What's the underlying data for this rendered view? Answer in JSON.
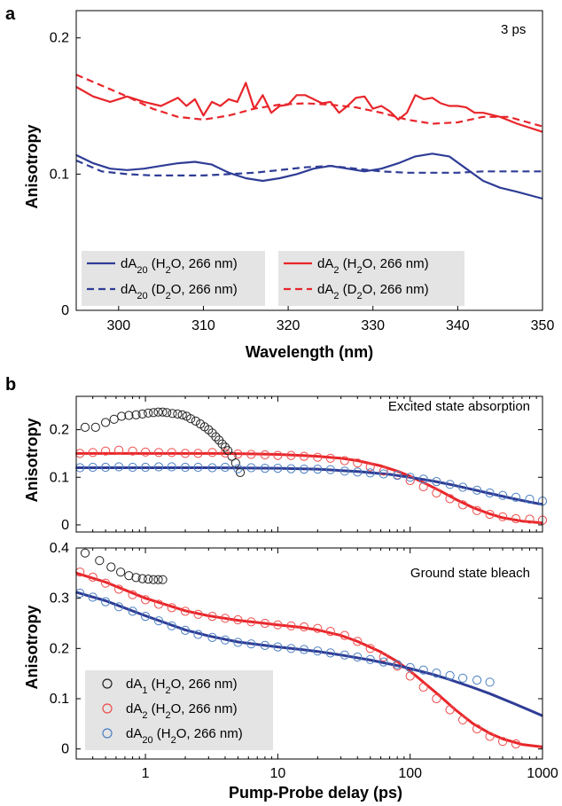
{
  "colors": {
    "blue": "#2f3d96",
    "red": "#e8262b",
    "black": "#222222",
    "legend_bg": "#e4e4e4",
    "marker_blue": "#4a7fc1",
    "marker_red": "#ee4a4a"
  },
  "panel_labels": {
    "a": "a",
    "b": "b"
  },
  "chart_data": [
    {
      "id": "a",
      "type": "line",
      "annotation": "3 ps",
      "xlabel": "Wavelength (nm)",
      "ylabel": "Anisotropy",
      "xlim": [
        295,
        350
      ],
      "ylim": [
        0,
        0.22
      ],
      "xticks": [
        "300",
        "310",
        "320",
        "330",
        "340",
        "350"
      ],
      "yticks": [
        "0",
        "0.1",
        "0.2"
      ],
      "legend": {
        "placement": "bottom-left"
      },
      "series": [
        {
          "name": "dA20 (H2O, 266 nm)",
          "legend_parts": [
            "dA",
            "20",
            " (H",
            "2",
            "O, 266 nm)"
          ],
          "color": "blue",
          "dash": false,
          "x": [
            295,
            297,
            299,
            301,
            303,
            305,
            307,
            309,
            311,
            313,
            315,
            317,
            319,
            321,
            323,
            325,
            327,
            329,
            331,
            333,
            335,
            337,
            339,
            341,
            343,
            345,
            347,
            350
          ],
          "y": [
            0.114,
            0.108,
            0.104,
            0.103,
            0.104,
            0.106,
            0.108,
            0.109,
            0.107,
            0.101,
            0.097,
            0.095,
            0.097,
            0.1,
            0.104,
            0.106,
            0.104,
            0.102,
            0.104,
            0.108,
            0.113,
            0.115,
            0.113,
            0.104,
            0.095,
            0.09,
            0.087,
            0.082
          ]
        },
        {
          "name": "dA20 (D2O, 266 nm)",
          "legend_parts": [
            "dA",
            "20",
            " (D",
            "2",
            "O, 266 nm)"
          ],
          "color": "blue",
          "dash": true,
          "x": [
            295,
            298,
            301,
            304,
            307,
            310,
            313,
            316,
            319,
            322,
            325,
            328,
            331,
            334,
            337,
            340,
            343,
            346,
            350
          ],
          "y": [
            0.11,
            0.102,
            0.1,
            0.099,
            0.099,
            0.099,
            0.1,
            0.101,
            0.103,
            0.105,
            0.106,
            0.104,
            0.102,
            0.101,
            0.101,
            0.101,
            0.102,
            0.102,
            0.102
          ]
        },
        {
          "name": "dA2 (H2O, 266 nm)",
          "legend_parts": [
            "dA",
            "2",
            " (H",
            "2",
            "O, 266 nm)"
          ],
          "color": "red",
          "dash": false,
          "x": [
            295,
            297,
            299,
            301,
            303,
            305,
            307,
            308,
            309,
            310,
            311,
            312,
            313,
            314,
            315,
            316,
            317,
            318,
            319,
            320,
            321,
            322,
            323,
            324,
            325,
            326,
            327,
            328,
            329,
            330,
            331,
            332,
            333,
            334,
            335,
            336,
            337,
            338,
            339,
            340,
            341,
            342,
            343,
            345,
            347,
            350
          ],
          "y": [
            0.164,
            0.157,
            0.153,
            0.157,
            0.153,
            0.15,
            0.156,
            0.15,
            0.155,
            0.143,
            0.153,
            0.15,
            0.155,
            0.153,
            0.167,
            0.148,
            0.158,
            0.145,
            0.15,
            0.151,
            0.158,
            0.158,
            0.155,
            0.152,
            0.153,
            0.145,
            0.15,
            0.156,
            0.157,
            0.148,
            0.15,
            0.146,
            0.14,
            0.145,
            0.158,
            0.155,
            0.156,
            0.152,
            0.15,
            0.15,
            0.149,
            0.145,
            0.145,
            0.142,
            0.137,
            0.131
          ]
        },
        {
          "name": "dA2 (D2O, 266 nm)",
          "legend_parts": [
            "dA",
            "2",
            " (D",
            "2",
            "O, 266 nm)"
          ],
          "color": "red",
          "dash": true,
          "x": [
            295,
            298,
            301,
            304,
            307,
            310,
            313,
            316,
            319,
            322,
            325,
            328,
            331,
            334,
            337,
            340,
            343,
            346,
            350
          ],
          "y": [
            0.173,
            0.165,
            0.157,
            0.148,
            0.142,
            0.14,
            0.143,
            0.148,
            0.151,
            0.152,
            0.151,
            0.149,
            0.145,
            0.14,
            0.137,
            0.138,
            0.142,
            0.142,
            0.135
          ]
        }
      ]
    },
    {
      "id": "b-top",
      "type": "scatter",
      "annotation": "Excited state absorption",
      "xlabel": "",
      "ylabel": "Anisotropy",
      "xscale": "log",
      "xlim": [
        0.3,
        1000
      ],
      "ylim": [
        -0.015,
        0.27
      ],
      "yticks": [
        "0",
        "0.1",
        "0.2"
      ],
      "series": [
        {
          "name": "dA1 (H2O, 266 nm)",
          "color": "black",
          "x": [
            0.35,
            0.42,
            0.5,
            0.58,
            0.66,
            0.75,
            0.85,
            0.95,
            1.05,
            1.15,
            1.25,
            1.35,
            1.45,
            1.6,
            1.75,
            1.9,
            2.05,
            2.2,
            2.4,
            2.6,
            2.8,
            3.0,
            3.2,
            3.4,
            3.6,
            3.8,
            4.0,
            4.2,
            4.5,
            4.8,
            5.2
          ],
          "y": [
            0.205,
            0.205,
            0.215,
            0.222,
            0.228,
            0.23,
            0.231,
            0.233,
            0.235,
            0.236,
            0.237,
            0.237,
            0.236,
            0.234,
            0.233,
            0.231,
            0.228,
            0.223,
            0.218,
            0.212,
            0.206,
            0.2,
            0.193,
            0.185,
            0.178,
            0.17,
            0.163,
            0.156,
            0.144,
            0.13,
            0.11
          ]
        },
        {
          "name": "dA2 (H2O, 266 nm)",
          "color": "red",
          "x": [
            0.32,
            0.4,
            0.5,
            0.63,
            0.8,
            1,
            1.26,
            1.58,
            2,
            2.5,
            3.2,
            4,
            5,
            6.3,
            8,
            10,
            12.6,
            15.8,
            20,
            25,
            32,
            40,
            50,
            63,
            80,
            100,
            126,
            158,
            200,
            250,
            320,
            400,
            500,
            630,
            800,
            1000
          ],
          "y": [
            0.15,
            0.152,
            0.155,
            0.157,
            0.155,
            0.153,
            0.152,
            0.152,
            0.15,
            0.15,
            0.152,
            0.151,
            0.149,
            0.148,
            0.147,
            0.146,
            0.146,
            0.144,
            0.142,
            0.14,
            0.135,
            0.13,
            0.122,
            0.113,
            0.105,
            0.093,
            0.08,
            0.067,
            0.055,
            0.042,
            0.03,
            0.022,
            0.017,
            0.013,
            0.012,
            0.01
          ]
        },
        {
          "name": "dA20 (H2O, 266 nm)",
          "color": "blue",
          "x": [
            0.32,
            0.4,
            0.5,
            0.63,
            0.8,
            1,
            1.26,
            1.58,
            2,
            2.5,
            3.2,
            4,
            5,
            6.3,
            8,
            10,
            12.6,
            15.8,
            20,
            25,
            32,
            40,
            50,
            63,
            80,
            100,
            126,
            158,
            200,
            250,
            320,
            400,
            500,
            630,
            800,
            1000
          ],
          "y": [
            0.12,
            0.121,
            0.121,
            0.122,
            0.121,
            0.121,
            0.122,
            0.122,
            0.121,
            0.121,
            0.12,
            0.121,
            0.118,
            0.12,
            0.119,
            0.119,
            0.118,
            0.117,
            0.117,
            0.116,
            0.113,
            0.111,
            0.109,
            0.107,
            0.104,
            0.1,
            0.096,
            0.091,
            0.085,
            0.079,
            0.073,
            0.067,
            0.062,
            0.058,
            0.054,
            0.05
          ]
        }
      ],
      "fits": [
        {
          "color": "red",
          "x": [
            0.3,
            0.5,
            1,
            2,
            4,
            7,
            10,
            15,
            20,
            30,
            40,
            60,
            80,
            100,
            130,
            170,
            220,
            300,
            400,
            500,
            700,
            1000
          ],
          "y": [
            0.15,
            0.15,
            0.15,
            0.15,
            0.15,
            0.149,
            0.148,
            0.146,
            0.144,
            0.14,
            0.135,
            0.124,
            0.113,
            0.102,
            0.087,
            0.071,
            0.054,
            0.036,
            0.023,
            0.015,
            0.008,
            0.004
          ]
        },
        {
          "color": "blue",
          "x": [
            0.3,
            1,
            3,
            10,
            20,
            40,
            70,
            100,
            150,
            200,
            300,
            400,
            600,
            800,
            1000
          ],
          "y": [
            0.12,
            0.12,
            0.12,
            0.119,
            0.117,
            0.112,
            0.106,
            0.1,
            0.092,
            0.085,
            0.074,
            0.066,
            0.055,
            0.048,
            0.043
          ]
        }
      ]
    },
    {
      "id": "b-bottom",
      "type": "scatter",
      "annotation": "Ground state bleach",
      "xlabel": "Pump-Probe delay (ps)",
      "ylabel": "Anisotropy",
      "xscale": "log",
      "xlim": [
        0.3,
        1000
      ],
      "ylim": [
        -0.02,
        0.4
      ],
      "xticks": [
        "1",
        "10",
        "100",
        "1000"
      ],
      "yticks": [
        "0",
        "0.1",
        "0.2",
        "0.3",
        "0.4"
      ],
      "legend": {
        "placement": "bottom-left"
      },
      "series": [
        {
          "name": "dA1 (H2O, 266 nm)",
          "legend_parts": [
            "dA",
            "1",
            " (H",
            "2",
            "O, 266 nm)"
          ],
          "color": "black",
          "x": [
            0.35,
            0.45,
            0.55,
            0.65,
            0.75,
            0.85,
            0.95,
            1.05,
            1.15,
            1.25,
            1.35
          ],
          "y": [
            0.39,
            0.375,
            0.362,
            0.352,
            0.345,
            0.341,
            0.339,
            0.338,
            0.337,
            0.337,
            0.337
          ]
        },
        {
          "name": "dA2 (H2O, 266 nm)",
          "legend_parts": [
            "dA",
            "2",
            " (H",
            "2",
            "O, 266 nm)"
          ],
          "color": "red",
          "x": [
            0.32,
            0.4,
            0.5,
            0.63,
            0.8,
            1,
            1.26,
            1.58,
            2,
            2.5,
            3.2,
            4,
            5,
            6.3,
            8,
            10,
            12.6,
            15.8,
            20,
            25,
            32,
            40,
            50,
            63,
            80,
            100,
            126,
            158,
            200,
            250,
            320,
            400,
            500,
            630
          ],
          "y": [
            0.352,
            0.342,
            0.33,
            0.318,
            0.307,
            0.297,
            0.288,
            0.281,
            0.274,
            0.268,
            0.264,
            0.26,
            0.257,
            0.253,
            0.25,
            0.247,
            0.245,
            0.243,
            0.24,
            0.234,
            0.226,
            0.214,
            0.2,
            0.183,
            0.165,
            0.145,
            0.123,
            0.1,
            0.078,
            0.058,
            0.04,
            0.025,
            0.015,
            0.01
          ]
        },
        {
          "name": "dA20 (H2O, 266 nm)",
          "legend_parts": [
            "dA",
            "20",
            " (H",
            "2",
            "O, 266 nm)"
          ],
          "color": "blue",
          "x": [
            0.32,
            0.4,
            0.5,
            0.63,
            0.8,
            1,
            1.26,
            1.58,
            2,
            2.5,
            3.2,
            4,
            5,
            6.3,
            8,
            10,
            12.6,
            15.8,
            20,
            25,
            32,
            40,
            50,
            63,
            80,
            100,
            126,
            158,
            200,
            250,
            320,
            400
          ],
          "y": [
            0.31,
            0.302,
            0.293,
            0.283,
            0.274,
            0.264,
            0.255,
            0.245,
            0.236,
            0.228,
            0.222,
            0.217,
            0.212,
            0.209,
            0.206,
            0.203,
            0.2,
            0.198,
            0.195,
            0.191,
            0.187,
            0.183,
            0.178,
            0.173,
            0.168,
            0.162,
            0.157,
            0.151,
            0.146,
            0.141,
            0.137,
            0.133
          ]
        }
      ],
      "fits": [
        {
          "color": "red",
          "x": [
            0.3,
            0.5,
            1,
            2,
            3,
            5,
            8,
            10,
            15,
            20,
            30,
            40,
            60,
            80,
            100,
            130,
            170,
            220,
            300,
            400,
            500,
            700,
            1000
          ],
          "y": [
            0.35,
            0.332,
            0.3,
            0.275,
            0.265,
            0.256,
            0.25,
            0.247,
            0.242,
            0.237,
            0.226,
            0.214,
            0.193,
            0.174,
            0.155,
            0.13,
            0.104,
            0.078,
            0.05,
            0.031,
            0.02,
            0.009,
            0.004
          ]
        },
        {
          "color": "blue",
          "x": [
            0.3,
            0.5,
            1,
            2,
            3,
            5,
            8,
            10,
            15,
            20,
            30,
            50,
            80,
            100,
            150,
            200,
            300,
            400,
            600,
            800,
            1000
          ],
          "y": [
            0.312,
            0.295,
            0.265,
            0.237,
            0.225,
            0.213,
            0.206,
            0.203,
            0.198,
            0.194,
            0.187,
            0.177,
            0.166,
            0.16,
            0.148,
            0.138,
            0.122,
            0.11,
            0.091,
            0.077,
            0.066
          ]
        }
      ]
    }
  ]
}
